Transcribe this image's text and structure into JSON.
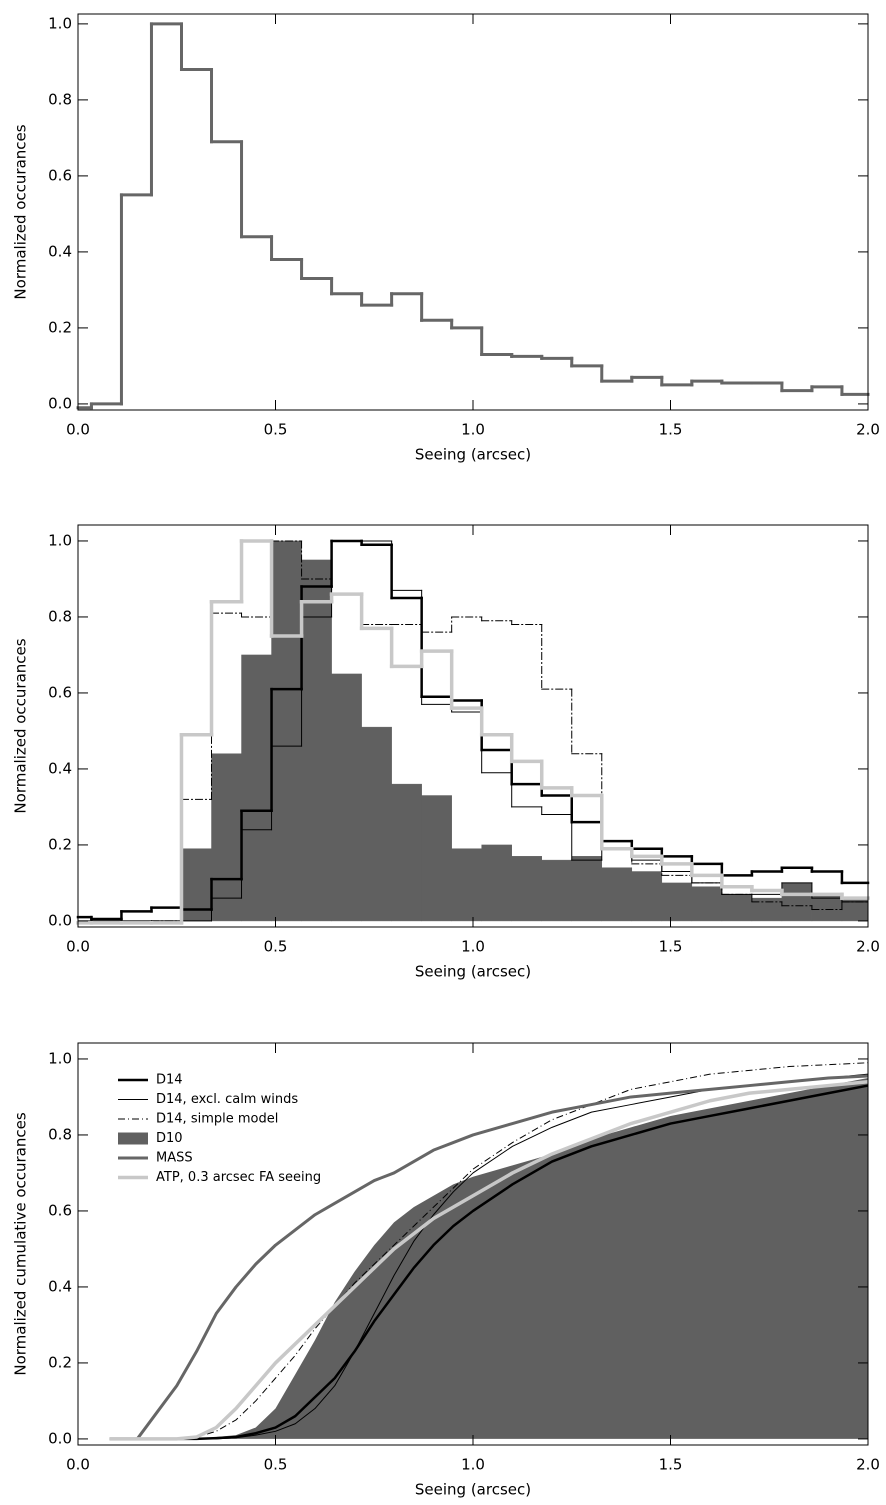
{
  "chart_data": [
    {
      "type": "histogram",
      "ylabel": "Normalized occurances",
      "xlabel": "Seeing (arcsec)",
      "bins": [
        0.0,
        0.034,
        0.11,
        0.186,
        0.262,
        0.338,
        0.414,
        0.49,
        0.566,
        0.642,
        0.718,
        0.794,
        0.87,
        0.946,
        1.022,
        1.098,
        1.174,
        1.25,
        1.326,
        1.402,
        1.478,
        1.554,
        1.63,
        1.706,
        1.782,
        1.858,
        1.934,
        2.0
      ],
      "values": [
        -0.01,
        0.0,
        0.55,
        1.0,
        0.88,
        0.69,
        0.44,
        0.38,
        0.33,
        0.29,
        0.26,
        0.29,
        0.22,
        0.2,
        0.13,
        0.125,
        0.12,
        0.1,
        0.06,
        0.07,
        0.05,
        0.06,
        0.055,
        0.055,
        0.035,
        0.045,
        0.025
      ],
      "color": "#666666",
      "linewidth": 3,
      "xlim": [
        0,
        2
      ],
      "ylim": [
        -0.016,
        1.026
      ],
      "xticks": [
        {
          "value": 0,
          "label": "0.0"
        },
        0.5,
        {
          "value": 1,
          "label": "1.0"
        },
        1.5,
        {
          "value": 2,
          "label": "2.0"
        }
      ],
      "yticks": [
        {
          "value": 0,
          "label": "0.0"
        },
        0.2,
        0.4,
        0.6,
        0.8,
        {
          "value": 1,
          "label": "1.0"
        }
      ]
    },
    {
      "type": "histogram",
      "ylabel": "Normalized occurances",
      "xlabel": "Seeing (arcsec)",
      "bins": [
        0.0,
        0.034,
        0.11,
        0.186,
        0.262,
        0.338,
        0.414,
        0.49,
        0.566,
        0.642,
        0.718,
        0.794,
        0.87,
        0.946,
        1.022,
        1.098,
        1.174,
        1.25,
        1.326,
        1.402,
        1.478,
        1.554,
        1.63,
        1.706,
        1.782,
        1.858,
        1.934,
        2.0
      ],
      "series": [
        {
          "color": "#000000",
          "linewidth": 2.5,
          "values": [
            0.01,
            0.005,
            0.025,
            0.035,
            0.03,
            0.11,
            0.29,
            0.61,
            0.88,
            1.0,
            0.99,
            0.85,
            0.59,
            0.58,
            0.45,
            0.36,
            0.33,
            0.26,
            0.21,
            0.19,
            0.17,
            0.15,
            0.12,
            0.13,
            0.14,
            0.13,
            0.1
          ]
        },
        {
          "color": "#000000",
          "linewidth": 1,
          "values": [
            0.0,
            0.0,
            0.0,
            0.0,
            0.0,
            0.06,
            0.24,
            0.46,
            0.8,
            1.0,
            1.0,
            0.87,
            0.57,
            0.55,
            0.39,
            0.3,
            0.28,
            0.16,
            0.19,
            0.16,
            0.13,
            0.1,
            0.07,
            0.07,
            0.1,
            0.06,
            0.05
          ]
        },
        {
          "color": "#000000",
          "linewidth": 1,
          "dash": "7,3,1,3",
          "values": [
            -0.005,
            -0.005,
            -0.005,
            0.0,
            0.32,
            0.81,
            0.8,
            1.0,
            0.9,
            0.86,
            0.78,
            0.78,
            0.76,
            0.8,
            0.79,
            0.78,
            0.61,
            0.44,
            0.21,
            0.15,
            0.12,
            0.1,
            0.07,
            0.05,
            0.04,
            0.03,
            0.05
          ]
        },
        {
          "color": "#606060",
          "fill": true,
          "values": [
            0.0,
            0.0,
            0.0,
            0.0,
            0.19,
            0.44,
            0.7,
            1.0,
            0.95,
            0.65,
            0.51,
            0.36,
            0.33,
            0.19,
            0.2,
            0.17,
            0.16,
            0.17,
            0.14,
            0.13,
            0.1,
            0.09,
            0.07,
            0.06,
            0.1,
            0.07,
            0.06
          ]
        },
        {
          "color": "#c8c8c8",
          "linewidth": 3.5,
          "values": [
            -0.005,
            -0.005,
            -0.005,
            -0.005,
            0.49,
            0.84,
            1.0,
            0.75,
            0.84,
            0.86,
            0.77,
            0.67,
            0.71,
            0.56,
            0.49,
            0.42,
            0.35,
            0.33,
            0.19,
            0.17,
            0.15,
            0.12,
            0.09,
            0.08,
            0.07,
            0.07,
            0.06
          ]
        }
      ],
      "xlim": [
        0,
        2
      ],
      "ylim": [
        -0.016,
        1.042
      ],
      "xticks": [
        {
          "value": 0,
          "label": "0.0"
        },
        0.5,
        {
          "value": 1,
          "label": "1.0"
        },
        1.5,
        {
          "value": 2,
          "label": "2.0"
        }
      ],
      "yticks": [
        {
          "value": 0,
          "label": "0.0"
        },
        0.2,
        0.4,
        0.6,
        0.8,
        {
          "value": 1,
          "label": "1.0"
        }
      ]
    },
    {
      "type": "line",
      "ylabel": "Normalized cumulative occurances",
      "xlabel": "Seeing (arcsec)",
      "legend": "upper left",
      "x": [
        0.08,
        0.15,
        0.2,
        0.25,
        0.3,
        0.35,
        0.4,
        0.45,
        0.5,
        0.55,
        0.6,
        0.65,
        0.7,
        0.75,
        0.8,
        0.85,
        0.9,
        0.95,
        1.0,
        1.1,
        1.2,
        1.3,
        1.4,
        1.5,
        1.6,
        1.7,
        1.8,
        1.9,
        2.0
      ],
      "series": [
        {
          "name": "D14",
          "color": "#000000",
          "linewidth": 2.5,
          "values": [
            0,
            0,
            0,
            0,
            0,
            0.002,
            0.005,
            0.015,
            0.03,
            0.06,
            0.11,
            0.16,
            0.23,
            0.31,
            0.38,
            0.45,
            0.51,
            0.56,
            0.6,
            0.67,
            0.73,
            0.77,
            0.8,
            0.83,
            0.85,
            0.87,
            0.89,
            0.91,
            0.93
          ]
        },
        {
          "name": "D14, excl. calm winds",
          "color": "#000000",
          "linewidth": 1,
          "values": [
            0,
            0,
            0,
            0,
            0,
            0,
            0.003,
            0.01,
            0.02,
            0.04,
            0.08,
            0.14,
            0.23,
            0.33,
            0.43,
            0.52,
            0.59,
            0.65,
            0.7,
            0.77,
            0.82,
            0.86,
            0.88,
            0.9,
            0.92,
            0.93,
            0.94,
            0.95,
            0.96
          ]
        },
        {
          "name": "D14, simple model",
          "color": "#000000",
          "linewidth": 1,
          "dash": "7,3,1,3",
          "values": [
            0,
            0,
            0,
            0,
            0.005,
            0.02,
            0.05,
            0.1,
            0.16,
            0.22,
            0.29,
            0.35,
            0.41,
            0.46,
            0.51,
            0.56,
            0.61,
            0.66,
            0.71,
            0.78,
            0.84,
            0.88,
            0.92,
            0.94,
            0.96,
            0.97,
            0.98,
            0.985,
            0.99
          ]
        },
        {
          "name": "D10",
          "color": "#606060",
          "fill": true,
          "values": [
            0,
            0,
            0,
            0,
            0,
            0.005,
            0.01,
            0.03,
            0.08,
            0.17,
            0.26,
            0.36,
            0.44,
            0.51,
            0.57,
            0.61,
            0.64,
            0.67,
            0.69,
            0.72,
            0.75,
            0.79,
            0.82,
            0.85,
            0.87,
            0.89,
            0.91,
            0.93,
            0.95
          ]
        },
        {
          "name": "MASS",
          "color": "#666666",
          "linewidth": 3,
          "values": [
            0,
            0,
            0.07,
            0.14,
            0.23,
            0.33,
            0.4,
            0.46,
            0.51,
            0.55,
            0.59,
            0.62,
            0.65,
            0.68,
            0.7,
            0.73,
            0.76,
            0.78,
            0.8,
            0.83,
            0.86,
            0.88,
            0.9,
            0.91,
            0.92,
            0.93,
            0.94,
            0.95,
            0.955
          ]
        },
        {
          "name": "ATP, 0.3 arcsec FA seeing",
          "color": "#c8c8c8",
          "linewidth": 3.5,
          "values": [
            0,
            0,
            0,
            0,
            0.005,
            0.03,
            0.08,
            0.14,
            0.2,
            0.25,
            0.3,
            0.35,
            0.4,
            0.45,
            0.5,
            0.54,
            0.58,
            0.61,
            0.64,
            0.7,
            0.75,
            0.79,
            0.83,
            0.86,
            0.89,
            0.91,
            0.92,
            0.93,
            0.94
          ]
        }
      ],
      "xlim": [
        0,
        2
      ],
      "ylim": [
        -0.016,
        1.042
      ],
      "xticks": [
        {
          "value": 0,
          "label": "0.0"
        },
        0.5,
        {
          "value": 1,
          "label": "1.0"
        },
        1.5,
        {
          "value": 2,
          "label": "2.0"
        }
      ],
      "yticks": [
        {
          "value": 0,
          "label": "0.0"
        },
        0.2,
        0.4,
        0.6,
        0.8,
        {
          "value": 1,
          "label": "1.0"
        }
      ]
    }
  ]
}
